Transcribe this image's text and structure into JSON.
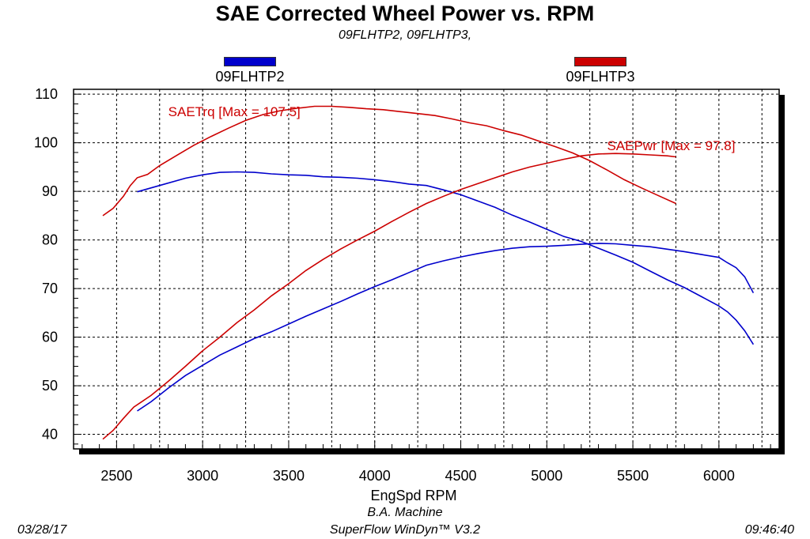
{
  "header": {
    "title": "SAE Corrected Wheel Power vs. RPM",
    "subtitle": "09FLHTP2, 09FLHTP3,"
  },
  "legend": [
    {
      "name": "09FLHTP2",
      "color": "#0000cc"
    },
    {
      "name": "09FLHTP3",
      "color": "#cc0000"
    }
  ],
  "footer": {
    "date": "03/28/17",
    "shop": "B.A. Machine",
    "software": "SuperFlow WinDyn™ V3.2",
    "time": "09:46:40"
  },
  "chart_data": {
    "type": "line",
    "xlabel": "EngSpd RPM",
    "ylabel": "",
    "xlim": [
      2250,
      6350
    ],
    "ylim": [
      37,
      111
    ],
    "xticks": [
      2500,
      3000,
      3500,
      4000,
      4500,
      5000,
      5500,
      6000
    ],
    "yticks": [
      40,
      50,
      60,
      70,
      80,
      90,
      100,
      110
    ],
    "grid": true,
    "annotations": [
      {
        "text": "SAETrq [Max = 107.5]",
        "x": 2800,
        "y": 105.5,
        "color": "#cc0000"
      },
      {
        "text": "SAEPwr [Max = 97.8]",
        "x": 5350,
        "y": 98.5,
        "color": "#cc0000"
      }
    ],
    "series": [
      {
        "name": "09FLHTP2",
        "measure": "SAETrq",
        "color": "#0000cc",
        "x": [
          2620,
          2750,
          2900,
          3000,
          3100,
          3200,
          3300,
          3400,
          3500,
          3600,
          3700,
          3800,
          3900,
          4000,
          4100,
          4200,
          4300,
          4400,
          4500,
          4600,
          4700,
          4800,
          4900,
          5000,
          5100,
          5200,
          5300,
          5400,
          5500,
          5600,
          5700,
          5800,
          5900,
          6000,
          6050,
          6100,
          6150,
          6200
        ],
        "y": [
          89.9,
          91.2,
          92.7,
          93.4,
          93.9,
          94.0,
          93.9,
          93.6,
          93.4,
          93.3,
          93.0,
          92.9,
          92.7,
          92.4,
          92.0,
          91.5,
          91.2,
          90.3,
          89.3,
          88.0,
          86.7,
          85.1,
          83.7,
          82.2,
          80.7,
          79.7,
          78.3,
          76.9,
          75.4,
          73.6,
          71.8,
          70.2,
          68.3,
          66.4,
          65.2,
          63.5,
          61.3,
          58.5
        ]
      },
      {
        "name": "09FLHTP2",
        "measure": "SAEPwr",
        "color": "#0000cc",
        "x": [
          2620,
          2700,
          2800,
          2900,
          3000,
          3100,
          3200,
          3300,
          3400,
          3500,
          3600,
          3700,
          3800,
          3900,
          4000,
          4100,
          4200,
          4300,
          4400,
          4500,
          4600,
          4700,
          4800,
          4900,
          5000,
          5100,
          5200,
          5300,
          5400,
          5500,
          5600,
          5700,
          5800,
          5900,
          6000,
          6050,
          6100,
          6150,
          6200
        ],
        "y": [
          44.8,
          46.7,
          49.5,
          52.1,
          54.2,
          56.3,
          58.0,
          59.7,
          61.1,
          62.7,
          64.3,
          65.8,
          67.3,
          68.9,
          70.4,
          71.8,
          73.3,
          74.8,
          75.7,
          76.5,
          77.2,
          77.8,
          78.3,
          78.6,
          78.7,
          78.9,
          79.1,
          79.3,
          79.2,
          78.9,
          78.6,
          78.1,
          77.6,
          77.0,
          76.4,
          75.3,
          74.3,
          72.4,
          69.1
        ]
      },
      {
        "name": "09FLHTP3",
        "measure": "SAETrq",
        "color": "#cc0000",
        "x": [
          2420,
          2480,
          2540,
          2580,
          2620,
          2680,
          2750,
          2850,
          2950,
          3050,
          3150,
          3250,
          3350,
          3450,
          3550,
          3650,
          3750,
          3850,
          3950,
          4050,
          4150,
          4250,
          4350,
          4450,
          4550,
          4650,
          4750,
          4850,
          4950,
          5050,
          5150,
          5250,
          5350,
          5450,
          5550,
          5650,
          5750
        ],
        "y": [
          85.0,
          86.5,
          89.0,
          91.2,
          92.8,
          93.5,
          95.3,
          97.4,
          99.5,
          101.3,
          103.0,
          104.6,
          105.8,
          106.6,
          107.1,
          107.5,
          107.5,
          107.3,
          107.0,
          106.8,
          106.4,
          106.0,
          105.6,
          104.9,
          104.1,
          103.5,
          102.5,
          101.6,
          100.4,
          99.2,
          97.9,
          96.3,
          94.4,
          92.4,
          90.7,
          89.1,
          87.5
        ]
      },
      {
        "name": "09FLHTP3",
        "measure": "SAEPwr",
        "color": "#cc0000",
        "x": [
          2420,
          2480,
          2540,
          2600,
          2700,
          2800,
          2900,
          3000,
          3100,
          3200,
          3300,
          3400,
          3500,
          3600,
          3700,
          3800,
          3900,
          4000,
          4100,
          4200,
          4300,
          4400,
          4500,
          4600,
          4700,
          4800,
          4900,
          5000,
          5100,
          5200,
          5300,
          5400,
          5500,
          5600,
          5700,
          5750
        ],
        "y": [
          39.0,
          40.8,
          43.3,
          45.6,
          48.0,
          50.9,
          54.0,
          57.2,
          60.0,
          63.0,
          65.6,
          68.5,
          71.0,
          73.7,
          76.0,
          78.1,
          80.0,
          81.8,
          83.8,
          85.7,
          87.5,
          89.0,
          90.4,
          91.6,
          92.8,
          94.0,
          95.0,
          95.8,
          96.6,
          97.3,
          97.7,
          97.8,
          97.7,
          97.5,
          97.3,
          97.1
        ]
      }
    ]
  }
}
